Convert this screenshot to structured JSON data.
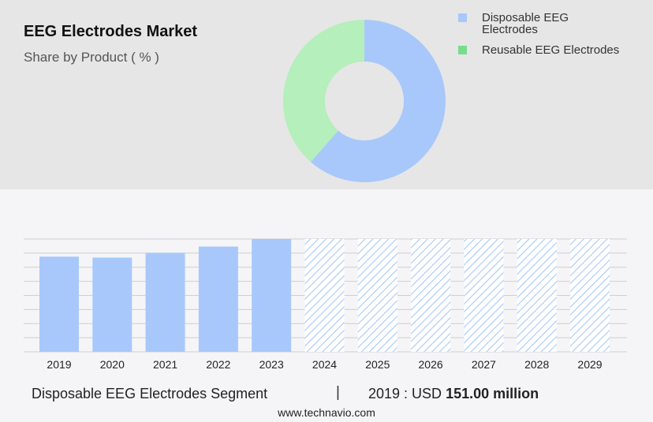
{
  "header": {
    "title": "EEG Electrodes Market",
    "subtitle": "Share by Product ( % )"
  },
  "legend": {
    "items": [
      {
        "label_line1": "Disposable EEG",
        "label_line2": "Electrodes",
        "color": "#a8c8fb"
      },
      {
        "label_line1": "Reusable EEG Electrodes",
        "label_line2": "",
        "color": "#77dc8c"
      }
    ]
  },
  "chart_data": [
    {
      "type": "pie",
      "subtype": "donut",
      "slices": [
        {
          "name": "Disposable EEG Electrodes",
          "value": 61.5,
          "color": "#a8c8fb"
        },
        {
          "name": "Reusable EEG Electrodes",
          "value": 38.5,
          "color": "#b5efbb"
        }
      ]
    },
    {
      "type": "bar",
      "categories": [
        "2019",
        "2020",
        "2021",
        "2022",
        "2023",
        "2024",
        "2025",
        "2026",
        "2027",
        "2028",
        "2029"
      ],
      "values": [
        151.0,
        149.5,
        157.0,
        167.0,
        179.0,
        null,
        null,
        null,
        null,
        null,
        null
      ],
      "forecast_categories": [
        "2024",
        "2025",
        "2026",
        "2027",
        "2028",
        "2029"
      ],
      "ylim": [
        0,
        179
      ],
      "grid": true,
      "bar_color": "#a8c8fb",
      "forecast_style": "hatched"
    }
  ],
  "footer": {
    "segment": "Disposable EEG Electrodes Segment",
    "divider": "|",
    "value_prefix": "2019 : USD ",
    "value_amount": "151.00 million",
    "url": "www.technavio.com"
  }
}
